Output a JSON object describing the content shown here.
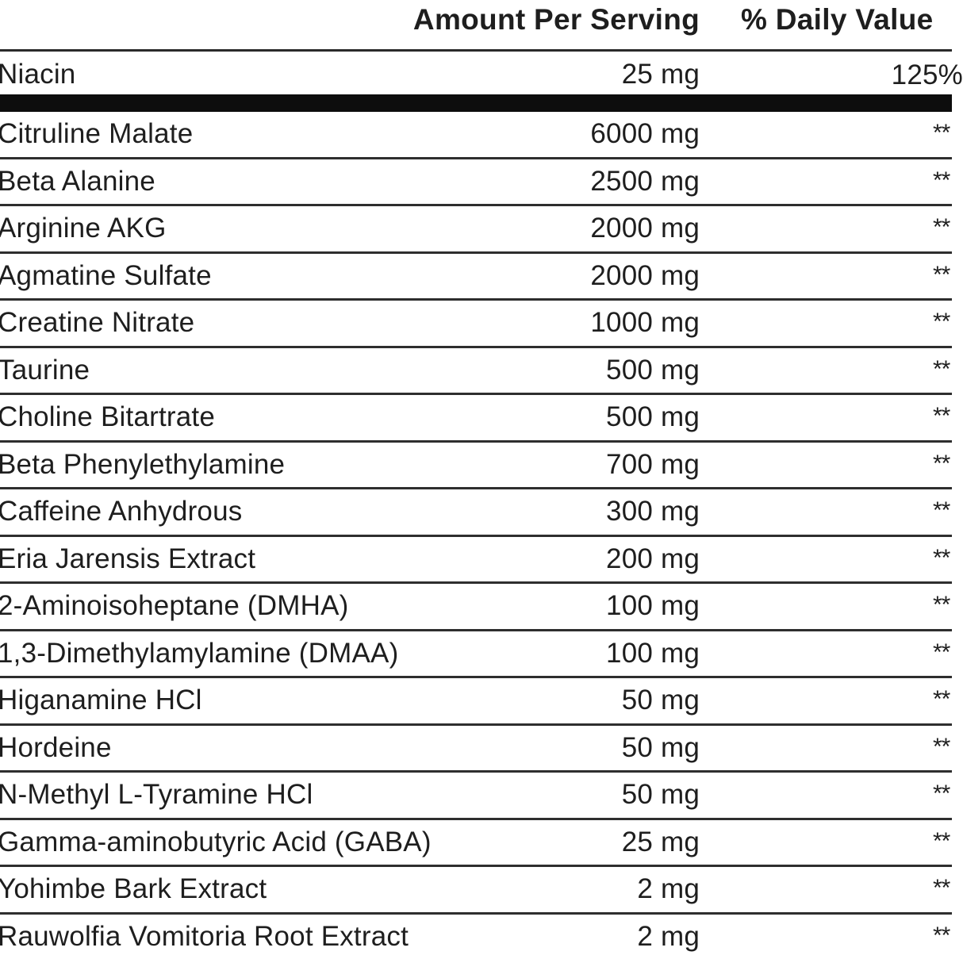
{
  "header": {
    "amount_label": "Amount Per Serving",
    "daily_value_label": "% Daily Value"
  },
  "niacin": {
    "name": "Niacin",
    "amount": "25 mg",
    "daily_value": "125%"
  },
  "ingredients": [
    {
      "name": "Citruline Malate",
      "amount": "6000 mg",
      "daily_value": "**"
    },
    {
      "name": "Beta Alanine",
      "amount": "2500 mg",
      "daily_value": "**"
    },
    {
      "name": "Arginine AKG",
      "amount": "2000 mg",
      "daily_value": "**"
    },
    {
      "name": "Agmatine Sulfate",
      "amount": "2000 mg",
      "daily_value": "**"
    },
    {
      "name": "Creatine Nitrate",
      "amount": "1000 mg",
      "daily_value": "**"
    },
    {
      "name": "Taurine",
      "amount": "500 mg",
      "daily_value": "**"
    },
    {
      "name": "Choline Bitartrate",
      "amount": "500 mg",
      "daily_value": "**"
    },
    {
      "name": "Beta Phenylethylamine",
      "amount": "700 mg",
      "daily_value": "**"
    },
    {
      "name": "Caffeine Anhydrous",
      "amount": "300 mg",
      "daily_value": "**"
    },
    {
      "name": "Eria Jarensis Extract",
      "amount": "200 mg",
      "daily_value": "**"
    },
    {
      "name": "2-Aminoisoheptane (DMHA)",
      "amount": "100 mg",
      "daily_value": "**"
    },
    {
      "name": "1,3-Dimethylamylamine (DMAA)",
      "amount": "100 mg",
      "daily_value": "**"
    },
    {
      "name": "Higanamine HCl",
      "amount": "50 mg",
      "daily_value": "**"
    },
    {
      "name": "Hordeine",
      "amount": "50 mg",
      "daily_value": "**"
    },
    {
      "name": "N-Methyl L-Tyramine HCl",
      "amount": "50 mg",
      "daily_value": "**"
    },
    {
      "name": "Gamma-aminobutyric Acid (GABA)",
      "amount": "25 mg",
      "daily_value": "**"
    },
    {
      "name": "Yohimbe Bark Extract",
      "amount": "2 mg",
      "daily_value": "**"
    },
    {
      "name": "Rauwolfia Vomitoria Root Extract",
      "amount": "2 mg",
      "daily_value": "**"
    }
  ]
}
